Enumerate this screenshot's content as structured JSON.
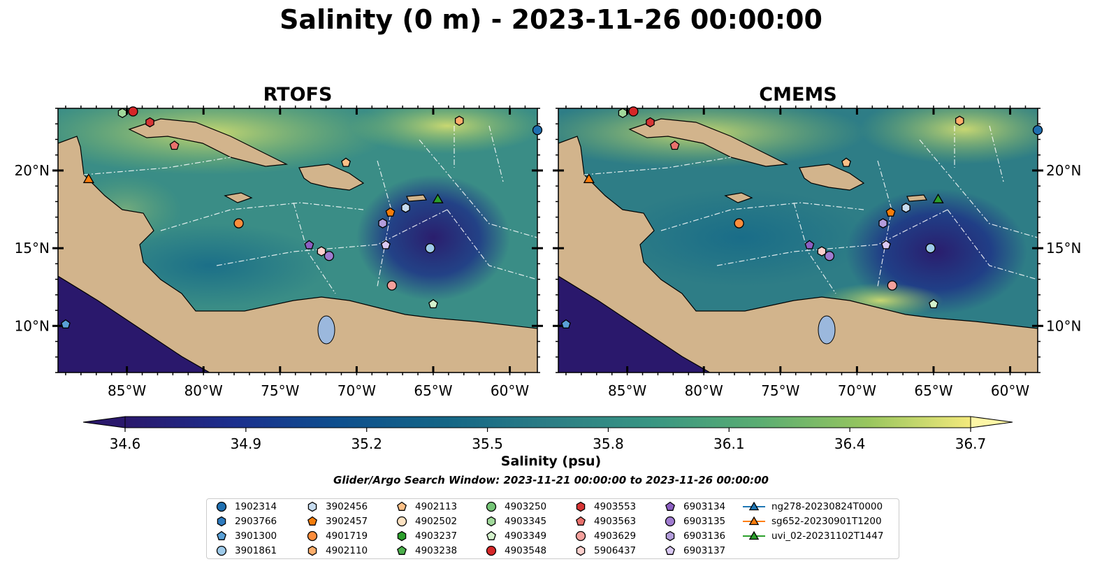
{
  "title": "Salinity (0 m) - 2023-11-26 00:00:00",
  "panels": [
    {
      "id": "rtofs",
      "title": "RTOFS"
    },
    {
      "id": "cmems",
      "title": "CMEMS"
    }
  ],
  "map": {
    "lon_range": [
      -89.5,
      -58.2
    ],
    "lat_range": [
      7.0,
      24.0
    ],
    "lon_ticks": [
      "85°W",
      "80°W",
      "75°W",
      "70°W",
      "65°W",
      "60°W"
    ],
    "lon_tick_values": [
      -85,
      -80,
      -75,
      -70,
      -65,
      -60
    ],
    "lat_ticks": [
      "20°N",
      "15°N",
      "10°N"
    ],
    "lat_tick_values": [
      20,
      15,
      10
    ],
    "colors": {
      "land": "#d2b48c",
      "lake": "#9bb8dd",
      "boundary_lines": "#ffffff",
      "coastline": "#000000"
    }
  },
  "colorbar": {
    "label": "Salinity (psu)",
    "min": 34.6,
    "max": 36.7,
    "ticks": [
      "34.6",
      "34.9",
      "35.2",
      "35.5",
      "35.8",
      "36.1",
      "36.4",
      "36.7"
    ],
    "colormap": "haline",
    "extend": "both"
  },
  "search_window": "Glider/Argo Search Window: 2023-11-21 00:00:00 to 2023-11-26 00:00:00",
  "legend": {
    "columns": [
      [
        {
          "label": "1902314",
          "marker": "circle",
          "color": "#1f6fb0"
        },
        {
          "label": "2903766",
          "marker": "hexagon",
          "color": "#2e7bbf"
        },
        {
          "label": "3901300",
          "marker": "pentagon",
          "color": "#5aa0d6"
        },
        {
          "label": "3901861",
          "marker": "circle",
          "color": "#9ecae9"
        }
      ],
      [
        {
          "label": "3902456",
          "marker": "hexagon",
          "color": "#c6dbef"
        },
        {
          "label": "3902457",
          "marker": "pentagon",
          "color": "#f57d0a"
        },
        {
          "label": "4901719",
          "marker": "circle",
          "color": "#fd8d3c"
        },
        {
          "label": "4902110",
          "marker": "hexagon",
          "color": "#fdae6b"
        }
      ],
      [
        {
          "label": "4902113",
          "marker": "pentagon",
          "color": "#fdc087"
        },
        {
          "label": "4902502",
          "marker": "circle",
          "color": "#fde2c2"
        },
        {
          "label": "4903237",
          "marker": "hexagon",
          "color": "#2ca02c"
        },
        {
          "label": "4903238",
          "marker": "pentagon",
          "color": "#4cb04c"
        }
      ],
      [
        {
          "label": "4903250",
          "marker": "circle",
          "color": "#74c476"
        },
        {
          "label": "4903345",
          "marker": "hexagon",
          "color": "#a1d99b"
        },
        {
          "label": "4903349",
          "marker": "pentagon",
          "color": "#d4f2cc"
        },
        {
          "label": "4903548",
          "marker": "circle",
          "color": "#d62728"
        }
      ],
      [
        {
          "label": "4903553",
          "marker": "hexagon",
          "color": "#d73535"
        },
        {
          "label": "4903563",
          "marker": "pentagon",
          "color": "#e8716c"
        },
        {
          "label": "4903629",
          "marker": "circle",
          "color": "#f4a09c"
        },
        {
          "label": "5906437",
          "marker": "hexagon",
          "color": "#fbd0cd"
        }
      ],
      [
        {
          "label": "6903134",
          "marker": "pentagon",
          "color": "#8c5fc2"
        },
        {
          "label": "6903135",
          "marker": "circle",
          "color": "#a07cd0"
        },
        {
          "label": "6903136",
          "marker": "hexagon",
          "color": "#b39ddb"
        },
        {
          "label": "6903137",
          "marker": "pentagon",
          "color": "#d9c8f2"
        }
      ],
      [
        {
          "label": "ng278-20230824T0000",
          "marker": "triangle-line",
          "color": "#1f77b4"
        },
        {
          "label": "sg652-20230901T1200",
          "marker": "triangle-line",
          "color": "#ff7f0e"
        },
        {
          "label": "uvi_02-20231102T1447",
          "marker": "triangle-line",
          "color": "#2ca02c"
        }
      ]
    ]
  },
  "observations": [
    {
      "label": "1902314",
      "lon": -58.2,
      "lat": 22.6
    },
    {
      "label": "3901300",
      "lon": -89.0,
      "lat": 10.1
    },
    {
      "label": "3902456",
      "lon": -66.8,
      "lat": 17.6
    },
    {
      "label": "3901861",
      "lon": -65.2,
      "lat": 15.0
    },
    {
      "label": "3902457",
      "lon": -67.8,
      "lat": 17.3
    },
    {
      "label": "4901719",
      "lon": -77.7,
      "lat": 16.6
    },
    {
      "label": "4902110",
      "lon": -63.3,
      "lat": 23.2
    },
    {
      "label": "4902113",
      "lon": -70.7,
      "lat": 20.5
    },
    {
      "label": "4903345",
      "lon": -85.3,
      "lat": 23.7
    },
    {
      "label": "4903349",
      "lon": -65.0,
      "lat": 11.4
    },
    {
      "label": "4903548",
      "lon": -84.6,
      "lat": 23.8
    },
    {
      "label": "4903553",
      "lon": -83.5,
      "lat": 23.1
    },
    {
      "label": "4903563",
      "lon": -81.9,
      "lat": 21.6
    },
    {
      "label": "4903629",
      "lon": -67.7,
      "lat": 12.6
    },
    {
      "label": "5906437",
      "lon": -72.3,
      "lat": 14.8
    },
    {
      "label": "6903134",
      "lon": -73.1,
      "lat": 15.2
    },
    {
      "label": "6903135",
      "lon": -71.8,
      "lat": 14.5
    },
    {
      "label": "6903136",
      "lon": -68.3,
      "lat": 16.6
    },
    {
      "label": "6903137",
      "lon": -68.1,
      "lat": 15.2
    },
    {
      "label": "sg652-20230901T1200",
      "lon": -87.5,
      "lat": 19.4
    },
    {
      "label": "uvi_02-20231102T1447",
      "lon": -64.7,
      "lat": 18.1
    }
  ]
}
